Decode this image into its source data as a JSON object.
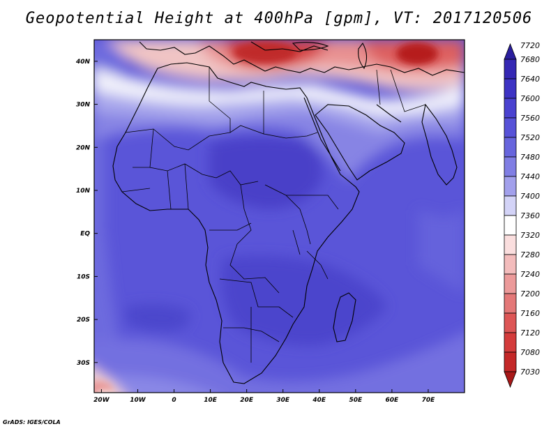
{
  "title": "Geopotential Height at 400hPa [gpm], VT: 2017120506",
  "credit": "GrADS: IGES/COLA",
  "map": {
    "region": "Africa",
    "variable": "Geopotential Height",
    "level": "400hPa",
    "units": "gpm",
    "valid_time": "2017120506",
    "lon_range": [
      -22,
      80
    ],
    "lat_range": [
      -37,
      45
    ],
    "x_ticks": [
      {
        "lon": -20,
        "label": "20W"
      },
      {
        "lon": -10,
        "label": "10W"
      },
      {
        "lon": 0,
        "label": "0"
      },
      {
        "lon": 10,
        "label": "10E"
      },
      {
        "lon": 20,
        "label": "20E"
      },
      {
        "lon": 30,
        "label": "30E"
      },
      {
        "lon": 40,
        "label": "40E"
      },
      {
        "lon": 50,
        "label": "50E"
      },
      {
        "lon": 60,
        "label": "60E"
      },
      {
        "lon": 70,
        "label": "70E"
      }
    ],
    "y_ticks": [
      {
        "lat": 40,
        "label": "40N"
      },
      {
        "lat": 30,
        "label": "30N"
      },
      {
        "lat": 20,
        "label": "20N"
      },
      {
        "lat": 10,
        "label": "10N"
      },
      {
        "lat": 0,
        "label": "EQ"
      },
      {
        "lat": -10,
        "label": "10S"
      },
      {
        "lat": -20,
        "label": "20S"
      },
      {
        "lat": -30,
        "label": "30S"
      }
    ]
  },
  "colorbar": {
    "levels": [
      {
        "label": "7720",
        "color": "#2a1e9e"
      },
      {
        "label": "7680",
        "color": "#3528b4"
      },
      {
        "label": "7640",
        "color": "#3d33c4"
      },
      {
        "label": "7600",
        "color": "#4a42d0"
      },
      {
        "label": "7560",
        "color": "#5752d8"
      },
      {
        "label": "7520",
        "color": "#6765dd"
      },
      {
        "label": "7480",
        "color": "#807ee4"
      },
      {
        "label": "7440",
        "color": "#a2a0ec"
      },
      {
        "label": "7400",
        "color": "#d3d3f7"
      },
      {
        "label": "7360",
        "color": "#ffffff"
      },
      {
        "label": "7320",
        "color": "#fadede"
      },
      {
        "label": "7280",
        "color": "#f3bcbc"
      },
      {
        "label": "7240",
        "color": "#ec9a9a"
      },
      {
        "label": "7200",
        "color": "#e47878"
      },
      {
        "label": "7160",
        "color": "#dd5656"
      },
      {
        "label": "7120",
        "color": "#d43c3c"
      },
      {
        "label": "7080",
        "color": "#c42828"
      },
      {
        "label": "7030",
        "color": "#a81818"
      }
    ]
  }
}
